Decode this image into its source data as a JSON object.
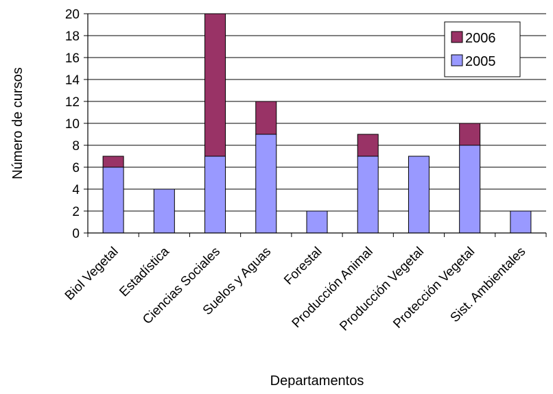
{
  "chart_data": {
    "type": "bar",
    "stacked": true,
    "xlabel": "Departamentos",
    "ylabel": "Número de cursos",
    "ylim": [
      0,
      20
    ],
    "yticks": [
      0,
      2,
      4,
      6,
      8,
      10,
      12,
      14,
      16,
      18,
      20
    ],
    "grid": "horizontal",
    "legend_position": "top-right",
    "categories": [
      "Biol Vegetal",
      "Estadística",
      "Ciencias Sociales",
      "Suelos y Aguas",
      "Forestal",
      "Producción Animal",
      "Producción Vegetal",
      "Protección Vegetal",
      "Sist. Ambientales"
    ],
    "series": [
      {
        "name": "2005",
        "color": "#9999ff",
        "values": [
          6,
          4,
          7,
          9,
          2,
          7,
          7,
          8,
          2
        ]
      },
      {
        "name": "2006",
        "color": "#993366",
        "values": [
          1,
          0,
          13,
          3,
          0,
          2,
          0,
          2,
          0
        ]
      }
    ],
    "legend_order": [
      "2006",
      "2005"
    ]
  }
}
